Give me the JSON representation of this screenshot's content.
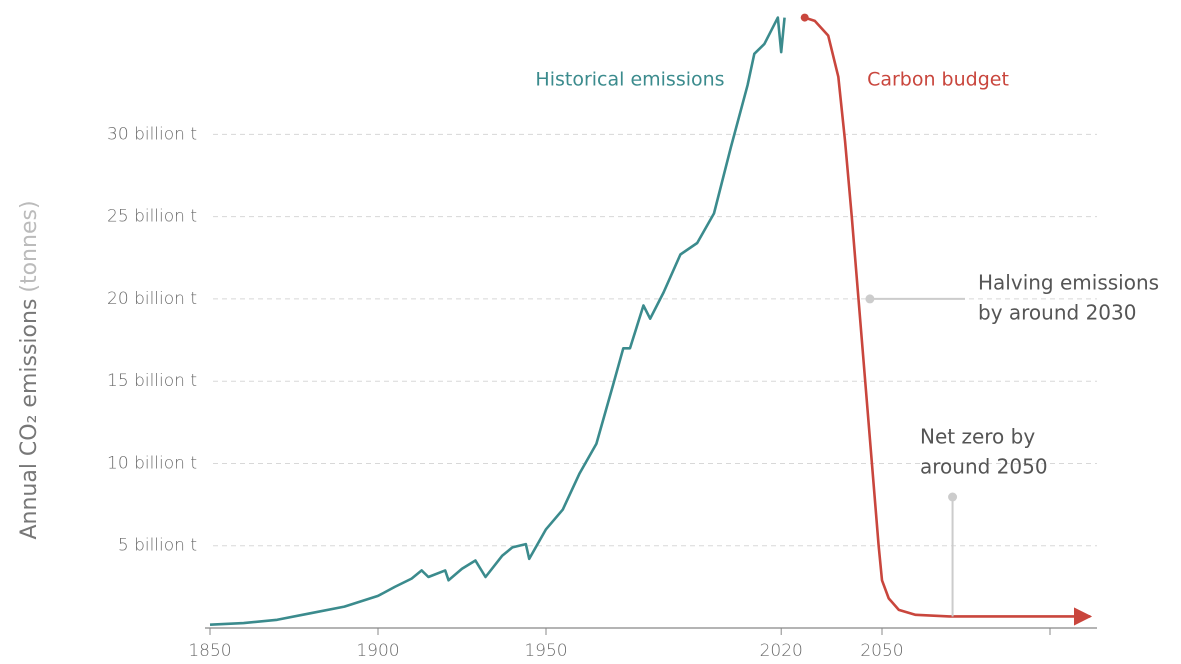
{
  "chart_data": {
    "type": "line",
    "y_label": "Annual CO₂ emissions",
    "y_label_unit": "(tonnes)",
    "xlim": [
      1850,
      2114
    ],
    "xticks": [
      {
        "value": 1850,
        "label": "1850"
      },
      {
        "value": 1900,
        "label": "1900"
      },
      {
        "value": 1950,
        "label": "1950"
      },
      {
        "value": 2020,
        "label": "2020"
      },
      {
        "value": 2050,
        "label": "2050"
      },
      {
        "value": 2100,
        "label": null
      }
    ],
    "ylim": [
      0,
      37.5
    ],
    "yticks": [
      {
        "value": 5,
        "label": "5 billion t"
      },
      {
        "value": 10,
        "label": "10 billion t"
      },
      {
        "value": 15,
        "label": "15 billion t"
      },
      {
        "value": 20,
        "label": "20 billion t"
      },
      {
        "value": 25,
        "label": "25 billion t"
      },
      {
        "value": 30,
        "label": "30 billion t"
      }
    ],
    "grid": true,
    "series": [
      {
        "name": "Historical emissions",
        "color": "#3b8b8d",
        "x": [
          1850,
          1860,
          1870,
          1880,
          1890,
          1900,
          1905,
          1910,
          1913,
          1915,
          1920,
          1921,
          1925,
          1929,
          1932,
          1937,
          1940,
          1944,
          1945,
          1950,
          1955,
          1960,
          1965,
          1970,
          1973,
          1975,
          1979,
          1981,
          1985,
          1990,
          1995,
          2000,
          2005,
          2010,
          2012,
          2015,
          2019,
          2020,
          2021
        ],
        "values": [
          0.2,
          0.3,
          0.5,
          0.9,
          1.3,
          1.95,
          2.5,
          3.0,
          3.5,
          3.1,
          3.5,
          2.9,
          3.6,
          4.1,
          3.1,
          4.4,
          4.9,
          5.1,
          4.2,
          6.0,
          7.2,
          9.4,
          11.2,
          14.8,
          17.0,
          17.0,
          19.6,
          18.8,
          20.4,
          22.7,
          23.4,
          25.2,
          29.2,
          33.0,
          34.9,
          35.5,
          37.1,
          35.0,
          37.1
        ]
      },
      {
        "name": "Carbon budget",
        "color": "#c9463d",
        "x": [
          2027,
          2030,
          2034,
          2037,
          2039,
          2041,
          2043,
          2045,
          2047,
          2049,
          2050,
          2052,
          2055,
          2060,
          2070,
          2090,
          2112
        ],
        "values": [
          37.1,
          36.9,
          36.0,
          33.5,
          29.6,
          25.0,
          20.0,
          15.0,
          10.0,
          5.0,
          2.9,
          1.8,
          1.1,
          0.8,
          0.7,
          0.7,
          0.7
        ]
      }
    ],
    "annotations": [
      {
        "lines": [
          "Halving emissions",
          "by around 2030"
        ],
        "x": 2046.4,
        "y": 20
      },
      {
        "lines": [
          "Net zero by",
          "around 2050"
        ],
        "x": 2071,
        "y": 0.7
      }
    ]
  }
}
